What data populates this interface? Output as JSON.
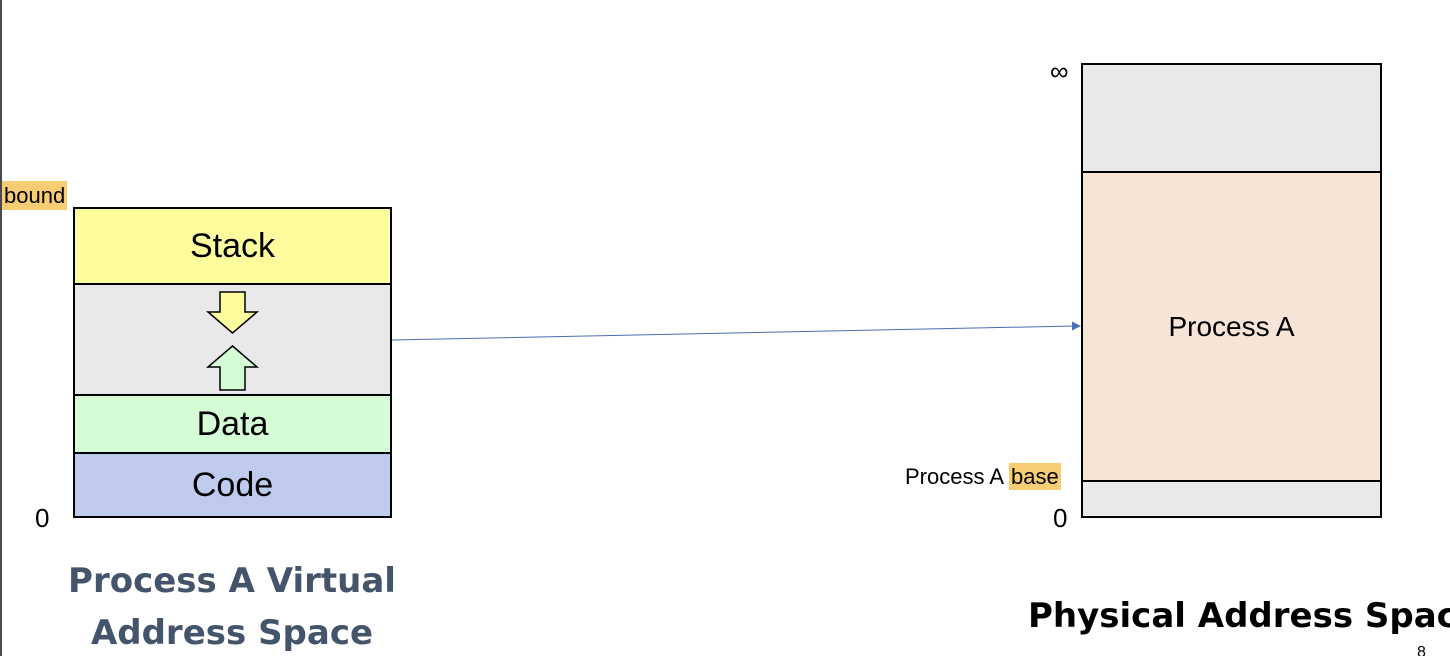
{
  "virtual": {
    "bound_label": "bound",
    "zero_label": "0",
    "segments": {
      "stack": "Stack",
      "data": "Data",
      "code": "Code"
    },
    "caption_line1": "Process A Virtual",
    "caption_line2": "Address Space"
  },
  "physical": {
    "infinity_label": "∞",
    "zero_label": "0",
    "process_label": "Process A",
    "base_prefix": "Process A",
    "base_highlight": "base",
    "caption": "Physical Address Space"
  },
  "page_number": "8",
  "colors": {
    "stack": "#fdfd9e",
    "gap": "#e9e9e9",
    "data": "#d5fdd5",
    "code": "#bfcbed",
    "process": "#f6e4d7",
    "highlight": "#f6cd73",
    "arrow": "#4a6fb4",
    "caption_virtual": "#44546a",
    "caption_physical": "#000000"
  }
}
